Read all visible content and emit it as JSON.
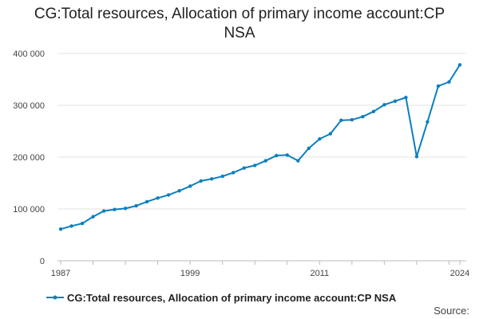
{
  "chart_data": {
    "type": "line",
    "title": "CG:Total resources, Allocation of primary income account:CP NSA",
    "xlabel": "",
    "ylabel": "",
    "series": [
      {
        "name": "CG:Total resources, Allocation of primary income account:CP NSA",
        "color": "#0b7fbf",
        "x": [
          1987,
          1988,
          1989,
          1990,
          1991,
          1992,
          1993,
          1994,
          1995,
          1996,
          1997,
          1998,
          1999,
          2000,
          2001,
          2002,
          2003,
          2004,
          2005,
          2006,
          2007,
          2008,
          2009,
          2010,
          2011,
          2012,
          2013,
          2014,
          2015,
          2016,
          2017,
          2018,
          2019,
          2020,
          2021,
          2022,
          2023,
          2024
        ],
        "values": [
          61000,
          67000,
          72000,
          85000,
          96000,
          99000,
          101000,
          106000,
          114000,
          121000,
          127000,
          135000,
          144000,
          154000,
          158000,
          163000,
          170000,
          179000,
          184000,
          193000,
          203000,
          204000,
          193000,
          217000,
          235000,
          245000,
          271000,
          272000,
          278000,
          288000,
          301000,
          308000,
          315000,
          201000,
          268000,
          337000,
          345000,
          378000
        ]
      }
    ],
    "xticks": [
      1987,
      1999,
      2011,
      2024
    ],
    "xtick_labels": [
      "1987",
      "1999",
      "2011",
      "2024"
    ],
    "yticks": [
      0,
      100000,
      200000,
      300000,
      400000
    ],
    "ytick_labels": [
      "0",
      "100 000",
      "200 000",
      "300 000",
      "400 000"
    ],
    "xlim": [
      1987,
      2024
    ],
    "ylim": [
      0,
      400000
    ],
    "grid": "horizontal",
    "legend": "bottom",
    "source_label": "Source:"
  }
}
